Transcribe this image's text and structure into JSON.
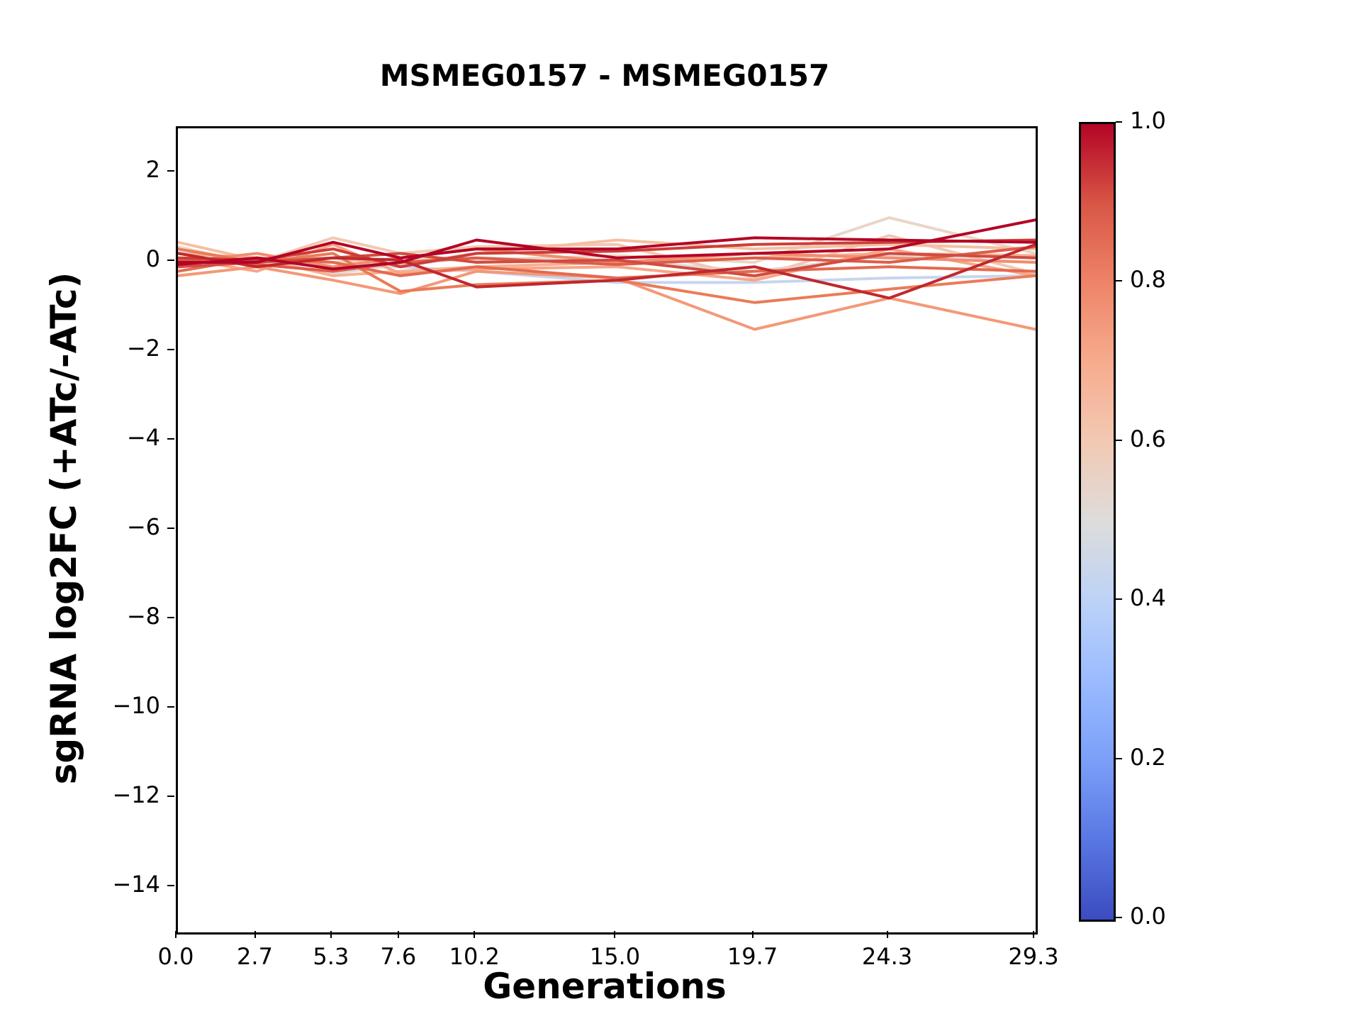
{
  "chart_data": {
    "type": "line",
    "title": "MSMEG0157 - MSMEG0157",
    "xlabel": "Generations",
    "ylabel": "sgRNA log2FC (+ATc/-ATc)",
    "grid": false,
    "legend": "none",
    "x": [
      0.0,
      2.7,
      5.3,
      7.6,
      10.2,
      15.0,
      19.7,
      24.3,
      29.3
    ],
    "xlim": [
      0.0,
      29.3
    ],
    "ylim": [
      -15.0,
      3.0
    ],
    "xticks": [
      "0.0",
      "2.7",
      "5.3",
      "7.6",
      "10.2",
      "15.0",
      "19.7",
      "24.3",
      "29.3"
    ],
    "xtick_values": [
      0.0,
      2.7,
      5.3,
      7.6,
      10.2,
      15.0,
      19.7,
      24.3,
      29.3
    ],
    "yticks": [
      "2",
      "0",
      "−2",
      "−4",
      "−6",
      "−8",
      "−10",
      "−12",
      "−14"
    ],
    "ytick_values": [
      2,
      0,
      -2,
      -4,
      -6,
      -8,
      -10,
      -12,
      -14
    ],
    "series": [
      {
        "color": "#c7d5ee",
        "values": [
          0.05,
          -0.05,
          0.0,
          -0.1,
          -0.2,
          -0.45,
          -0.45,
          -0.35,
          -0.3
        ]
      },
      {
        "color": "#dedcdb",
        "values": [
          0.25,
          0.05,
          -0.25,
          -0.05,
          0.1,
          0.05,
          -0.2,
          0.15,
          0.0
        ]
      },
      {
        "color": "#e9d6c9",
        "values": [
          0.35,
          -0.05,
          0.0,
          0.1,
          0.05,
          0.15,
          0.0,
          1.0,
          0.2
        ]
      },
      {
        "color": "#f1c9b3",
        "values": [
          0.1,
          0.0,
          0.55,
          0.2,
          0.35,
          0.4,
          -0.35,
          0.6,
          -0.25
        ]
      },
      {
        "color": "#f5bfa2",
        "values": [
          0.45,
          0.05,
          0.1,
          -0.05,
          0.2,
          0.5,
          0.3,
          0.4,
          0.3
        ]
      },
      {
        "color": "#f7b093",
        "values": [
          0.2,
          0.1,
          -0.3,
          -0.2,
          -0.1,
          0.0,
          0.1,
          0.2,
          0.15
        ]
      },
      {
        "color": "#f7a687",
        "values": [
          0.1,
          -0.2,
          0.4,
          -0.25,
          -0.15,
          -0.1,
          -0.4,
          0.3,
          -0.3
        ]
      },
      {
        "color": "#f49878",
        "values": [
          -0.3,
          -0.1,
          -0.4,
          -0.7,
          -0.2,
          -0.35,
          -1.5,
          -0.8,
          -1.5
        ]
      },
      {
        "color": "#f18d6f",
        "values": [
          0.0,
          0.2,
          -0.1,
          0.1,
          0.3,
          0.0,
          0.2,
          0.1,
          0.0
        ]
      },
      {
        "color": "#ea7b58",
        "values": [
          0.3,
          0.0,
          0.2,
          -0.65,
          -0.5,
          -0.4,
          -0.9,
          -0.6,
          -0.3
        ]
      },
      {
        "color": "#e36a50",
        "values": [
          -0.2,
          0.1,
          0.0,
          -0.3,
          -0.1,
          -0.35,
          -0.2,
          -0.1,
          -0.2
        ]
      },
      {
        "color": "#dc5d4a",
        "values": [
          0.05,
          -0.05,
          -0.2,
          0.0,
          0.1,
          -0.05,
          0.1,
          0.0,
          0.35
        ]
      },
      {
        "color": "#d24b40",
        "values": [
          -0.1,
          0.0,
          0.1,
          0.2,
          0.0,
          0.05,
          -0.3,
          0.2,
          0.1
        ]
      },
      {
        "color": "#cb3e38",
        "values": [
          0.1,
          0.05,
          0.3,
          -0.1,
          0.2,
          0.25,
          0.4,
          0.45,
          0.5
        ]
      },
      {
        "color": "#c0282d",
        "values": [
          0.2,
          -0.1,
          0.1,
          0.05,
          -0.55,
          -0.4,
          -0.1,
          -0.8,
          0.4
        ]
      },
      {
        "color": "#b40426",
        "values": [
          0.0,
          0.0,
          0.45,
          0.1,
          0.3,
          0.3,
          0.55,
          0.5,
          0.45
        ]
      },
      {
        "color": "#b40426",
        "values": [
          -0.05,
          0.1,
          -0.15,
          0.0,
          0.5,
          0.1,
          0.2,
          0.3,
          0.95
        ]
      }
    ],
    "colorbar": {
      "colormap": "coolwarm",
      "min": 0.0,
      "max": 1.0,
      "ticks": [
        "1.0",
        "0.8",
        "0.6",
        "0.4",
        "0.2",
        "0.0"
      ],
      "tick_values": [
        1.0,
        0.8,
        0.6,
        0.4,
        0.2,
        0.0
      ],
      "stops": [
        "#3b4cc0",
        "#5977e3",
        "#7b9ff9",
        "#9abbff",
        "#bcd2f7",
        "#dddcdb",
        "#f2c9b4",
        "#f7ac8e",
        "#ee8468",
        "#d85646",
        "#b40426"
      ]
    }
  }
}
